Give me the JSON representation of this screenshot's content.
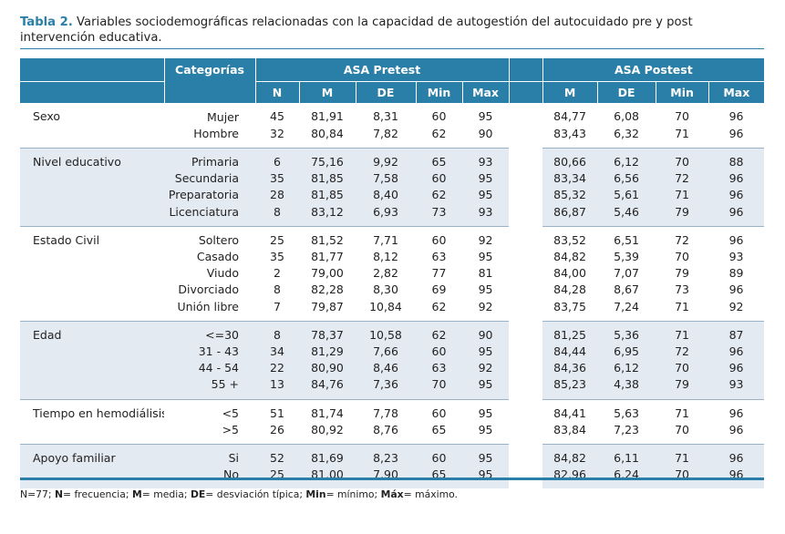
{
  "caption": {
    "label": "Tabla 2.",
    "text": " Variables sociodemográficas relacionadas con la capacidad de autogestión del autocuidado pre y post intervención educativa."
  },
  "header": {
    "categorias": "Categorías",
    "pretest": "ASA Pretest",
    "postest": "ASA Postest",
    "pre_cols": [
      "N",
      "M",
      "DE",
      "Min",
      "Max"
    ],
    "post_cols": [
      "M",
      "DE",
      "Min",
      "Max"
    ]
  },
  "groups": [
    {
      "label": "Sexo",
      "rows": [
        {
          "cat": "Mujer",
          "pre": [
            "45",
            "81,91",
            "8,31",
            "60",
            "95"
          ],
          "post": [
            "84,77",
            "6,08",
            "70",
            "96"
          ]
        },
        {
          "cat": "Hombre",
          "pre": [
            "32",
            "80,84",
            "7,82",
            "62",
            "90"
          ],
          "post": [
            "83,43",
            "6,32",
            "71",
            "96"
          ]
        }
      ]
    },
    {
      "label": "Nivel educativo",
      "rows": [
        {
          "cat": "Primaria",
          "pre": [
            "6",
            "75,16",
            "9,92",
            "65",
            "93"
          ],
          "post": [
            "80,66",
            "6,12",
            "70",
            "88"
          ]
        },
        {
          "cat": "Secundaria",
          "pre": [
            "35",
            "81,85",
            "7,58",
            "60",
            "95"
          ],
          "post": [
            "83,34",
            "6,56",
            "72",
            "96"
          ]
        },
        {
          "cat": "Preparatoria",
          "pre": [
            "28",
            "81,85",
            "8,40",
            "62",
            "95"
          ],
          "post": [
            "85,32",
            "5,61",
            "71",
            "96"
          ]
        },
        {
          "cat": "Licenciatura",
          "pre": [
            "8",
            "83,12",
            "6,93",
            "73",
            "93"
          ],
          "post": [
            "86,87",
            "5,46",
            "79",
            "96"
          ]
        }
      ]
    },
    {
      "label": "Estado Civil",
      "rows": [
        {
          "cat": "Soltero",
          "pre": [
            "25",
            "81,52",
            "7,71",
            "60",
            "92"
          ],
          "post": [
            "83,52",
            "6,51",
            "72",
            "96"
          ]
        },
        {
          "cat": "Casado",
          "pre": [
            "35",
            "81,77",
            "8,12",
            "63",
            "95"
          ],
          "post": [
            "84,82",
            "5,39",
            "70",
            "93"
          ]
        },
        {
          "cat": "Viudo",
          "pre": [
            "2",
            "79,00",
            "2,82",
            "77",
            "81"
          ],
          "post": [
            "84,00",
            "7,07",
            "79",
            "89"
          ]
        },
        {
          "cat": "Divorciado",
          "pre": [
            "8",
            "82,28",
            "8,30",
            "69",
            "95"
          ],
          "post": [
            "84,28",
            "8,67",
            "73",
            "96"
          ]
        },
        {
          "cat": "Unión libre",
          "pre": [
            "7",
            "79,87",
            "10,84",
            "62",
            "92"
          ],
          "post": [
            "83,75",
            "7,24",
            "71",
            "92"
          ]
        }
      ]
    },
    {
      "label": "Edad",
      "rows": [
        {
          "cat": "<=30",
          "pre": [
            "8",
            "78,37",
            "10,58",
            "62",
            "90"
          ],
          "post": [
            "81,25",
            "5,36",
            "71",
            "87"
          ]
        },
        {
          "cat": "31 - 43",
          "pre": [
            "34",
            "81,29",
            "7,66",
            "60",
            "95"
          ],
          "post": [
            "84,44",
            "6,95",
            "72",
            "96"
          ]
        },
        {
          "cat": "44 - 54",
          "pre": [
            "22",
            "80,90",
            "8,46",
            "63",
            "92"
          ],
          "post": [
            "84,36",
            "6,12",
            "70",
            "96"
          ]
        },
        {
          "cat": "55 +",
          "pre": [
            "13",
            "84,76",
            "7,36",
            "70",
            "95"
          ],
          "post": [
            "85,23",
            "4,38",
            "79",
            "93"
          ]
        }
      ]
    },
    {
      "label": "Tiempo en hemodiálisis",
      "rows": [
        {
          "cat": "<5",
          "pre": [
            "51",
            "81,74",
            "7,78",
            "60",
            "95"
          ],
          "post": [
            "84,41",
            "5,63",
            "71",
            "96"
          ]
        },
        {
          "cat": ">5",
          "pre": [
            "26",
            "80,92",
            "8,76",
            "65",
            "95"
          ],
          "post": [
            "83,84",
            "7,23",
            "70",
            "96"
          ]
        }
      ]
    },
    {
      "label": "Apoyo familiar",
      "rows": [
        {
          "cat": "Si",
          "pre": [
            "52",
            "81,69",
            "8,23",
            "60",
            "95"
          ],
          "post": [
            "84,82",
            "6,11",
            "71",
            "96"
          ]
        },
        {
          "cat": "No",
          "pre": [
            "25",
            "81,00",
            "7,90",
            "65",
            "95"
          ],
          "post": [
            "82,96",
            "6,24",
            "70",
            "96"
          ]
        }
      ]
    }
  ],
  "footnote": [
    {
      "abbr": "",
      "text": "N=77; "
    },
    {
      "abbr": "N",
      "text": "= frecuencia; "
    },
    {
      "abbr": "M",
      "text": "= media; "
    },
    {
      "abbr": "DE",
      "text": "= desviación típica; "
    },
    {
      "abbr": "Min",
      "text": "= mínimo; "
    },
    {
      "abbr": "Máx",
      "text": "= máximo."
    }
  ]
}
